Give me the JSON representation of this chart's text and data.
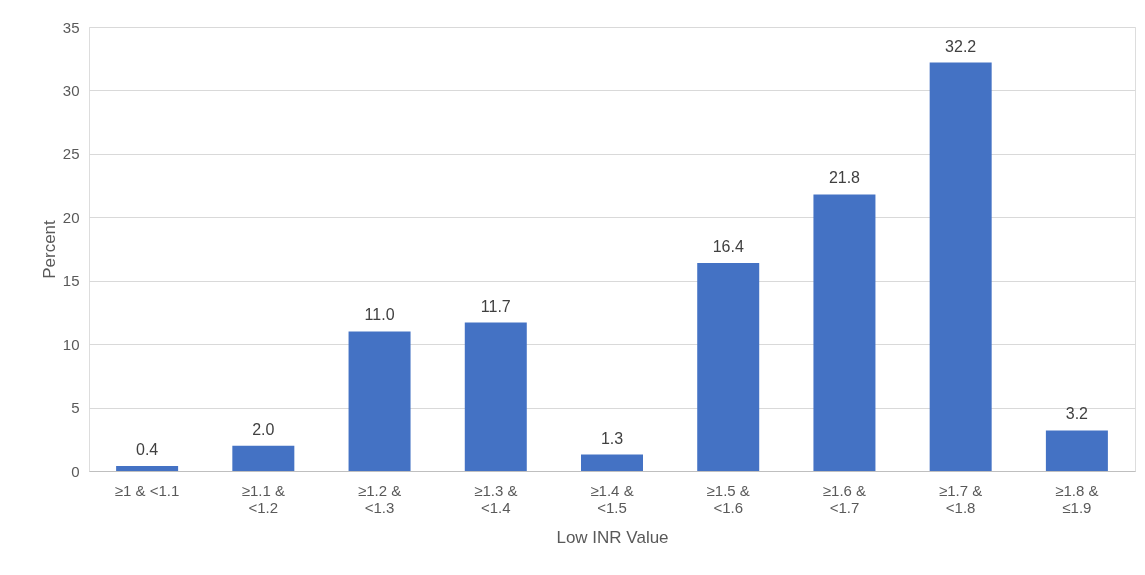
{
  "chart_data": {
    "type": "bar",
    "categories": [
      "≥1 & <1.1",
      "≥1.1 & <1.2",
      "≥1.2 & <1.3",
      "≥1.3 & <1.4",
      "≥1.4 & <1.5",
      "≥1.5 & <1.6",
      "≥1.6 & <1.7",
      "≥1.7 & <1.8",
      "≥1.8 & ≤1.9"
    ],
    "values": [
      0.4,
      2.0,
      11.0,
      11.7,
      1.3,
      16.4,
      21.8,
      32.2,
      3.2
    ],
    "color": "#4472c4",
    "xlabel": "Low INR Value",
    "ylabel": "Percent",
    "ylim": [
      0,
      35
    ],
    "yticks": [
      0,
      5,
      10,
      15,
      20,
      25,
      30,
      35
    ],
    "value_labels": [
      "0.4",
      "2.0",
      "11.0",
      "11.7",
      "1.3",
      "16.4",
      "21.8",
      "32.2",
      "3.2"
    ],
    "grid": "y"
  }
}
